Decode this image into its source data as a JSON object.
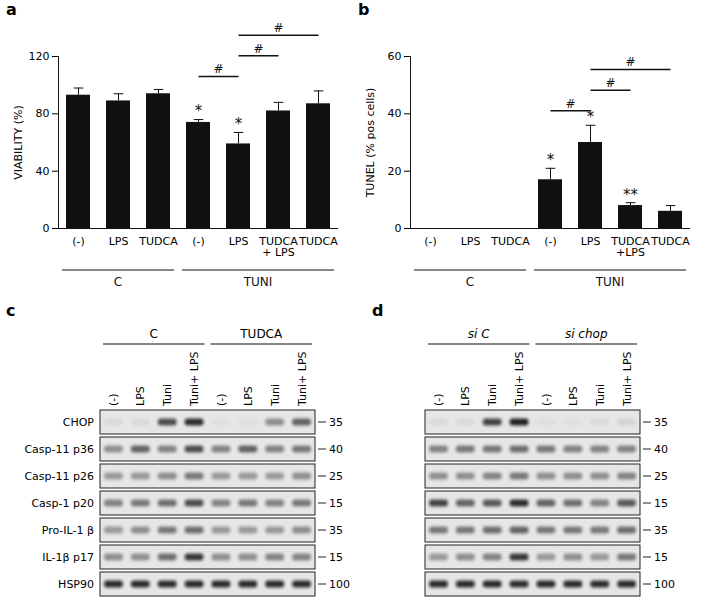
{
  "chart_data": [
    {
      "type": "bar",
      "panel": "a",
      "ylabel": "VIABILITY (%)",
      "color": "#111111",
      "categories": [
        "(-)",
        "LPS",
        "TUDCA",
        "(-)",
        "LPS",
        "TUDCA + LPS",
        "TUDCA"
      ],
      "values": [
        93,
        89,
        94,
        74,
        59,
        82,
        87
      ],
      "error": [
        5,
        5,
        3,
        2,
        8,
        6,
        9
      ],
      "ylim": [
        0,
        120
      ],
      "yticks": [
        0,
        40,
        80,
        120
      ],
      "grid": false,
      "group_labels": [
        {
          "label": "C",
          "from": 0,
          "to": 2
        },
        {
          "label": "TUNI",
          "from": 3,
          "to": 6
        }
      ],
      "annotations": [
        {
          "index": 3,
          "text": "*"
        },
        {
          "index": 4,
          "text": "*"
        }
      ],
      "brackets": [
        {
          "from": 3,
          "to": 4,
          "text": "#"
        },
        {
          "from": 4,
          "to": 5,
          "text": "#"
        },
        {
          "from": 4,
          "to": 6,
          "text": "#"
        }
      ]
    },
    {
      "type": "bar",
      "panel": "b",
      "ylabel": "TUNEL (% pos cells)",
      "color": "#111111",
      "categories": [
        "(-)",
        "LPS",
        "TUDCA",
        "(-)",
        "LPS",
        "TUDCA +LPS",
        "TUDCA"
      ],
      "values": [
        0,
        0,
        0,
        17,
        30,
        8,
        6
      ],
      "error": [
        0,
        0,
        0,
        4,
        6,
        1,
        2
      ],
      "ylim": [
        0,
        60
      ],
      "yticks": [
        0,
        20,
        40,
        60
      ],
      "grid": false,
      "group_labels": [
        {
          "label": "C",
          "from": 0,
          "to": 2
        },
        {
          "label": "TUNI",
          "from": 3,
          "to": 6
        }
      ],
      "annotations": [
        {
          "index": 3,
          "text": "*"
        },
        {
          "index": 4,
          "text": "*"
        },
        {
          "index": 5,
          "text": "**"
        }
      ],
      "brackets": [
        {
          "from": 3,
          "to": 4,
          "text": "#"
        },
        {
          "from": 4,
          "to": 5,
          "text": "#"
        },
        {
          "from": 4,
          "to": 6,
          "text": "#"
        }
      ]
    }
  ],
  "blots": [
    {
      "panel": "c",
      "groups": [
        {
          "label": "C",
          "lanes": [
            "(-)",
            "LPS",
            "Tuni",
            "Tuni+ LPS"
          ]
        },
        {
          "label": "TUDCA",
          "lanes": [
            "(-)",
            "LPS",
            "Tuni",
            "Tuni+ LPS"
          ]
        }
      ],
      "rows": [
        {
          "label": "CHOP",
          "marker": 35,
          "intensity": [
            0.05,
            0.05,
            0.7,
            0.85,
            0.03,
            0.03,
            0.4,
            0.6
          ]
        },
        {
          "label": "Casp-11 p36",
          "marker": 40,
          "intensity": [
            0.4,
            0.6,
            0.45,
            0.7,
            0.45,
            0.6,
            0.45,
            0.5
          ]
        },
        {
          "label": "Casp-11 p26",
          "marker": 25,
          "intensity": [
            0.35,
            0.35,
            0.4,
            0.5,
            0.35,
            0.35,
            0.35,
            0.4
          ]
        },
        {
          "label": "Casp-1 p20",
          "marker": 15,
          "intensity": [
            0.45,
            0.5,
            0.55,
            0.7,
            0.45,
            0.5,
            0.45,
            0.5
          ]
        },
        {
          "label": "Pro-IL-1 β",
          "marker": 35,
          "intensity": [
            0.35,
            0.4,
            0.5,
            0.55,
            0.35,
            0.35,
            0.35,
            0.4
          ]
        },
        {
          "label": "IL-1β p17",
          "marker": 15,
          "intensity": [
            0.4,
            0.4,
            0.55,
            0.8,
            0.4,
            0.4,
            0.45,
            0.45
          ]
        },
        {
          "label": "HSP90",
          "marker": 100,
          "intensity": [
            0.85,
            0.85,
            0.85,
            0.85,
            0.85,
            0.85,
            0.85,
            0.85
          ]
        }
      ]
    },
    {
      "panel": "d",
      "groups": [
        {
          "label": "si C",
          "lanes": [
            "(-)",
            "LPS",
            "Tuni",
            "Tuni+ LPS"
          ]
        },
        {
          "label": "si chop",
          "lanes": [
            "(-)",
            "LPS",
            "Tuni",
            "Tuni+ LPS"
          ]
        }
      ],
      "rows": [
        {
          "marker": 35,
          "intensity": [
            0.05,
            0.05,
            0.75,
            0.9,
            0.03,
            0.03,
            0.05,
            0.08
          ]
        },
        {
          "marker": 40,
          "intensity": [
            0.45,
            0.5,
            0.5,
            0.55,
            0.5,
            0.45,
            0.45,
            0.45
          ]
        },
        {
          "marker": 25,
          "intensity": [
            0.4,
            0.4,
            0.45,
            0.5,
            0.4,
            0.4,
            0.4,
            0.45
          ]
        },
        {
          "marker": 15,
          "intensity": [
            0.75,
            0.6,
            0.65,
            0.85,
            0.6,
            0.55,
            0.45,
            0.65
          ]
        },
        {
          "marker": 35,
          "intensity": [
            0.5,
            0.5,
            0.55,
            0.6,
            0.5,
            0.5,
            0.5,
            0.55
          ]
        },
        {
          "marker": 15,
          "intensity": [
            0.35,
            0.4,
            0.45,
            0.8,
            0.35,
            0.4,
            0.35,
            0.5
          ]
        },
        {
          "marker": 100,
          "intensity": [
            0.85,
            0.85,
            0.85,
            0.85,
            0.85,
            0.85,
            0.85,
            0.85
          ]
        }
      ]
    }
  ]
}
